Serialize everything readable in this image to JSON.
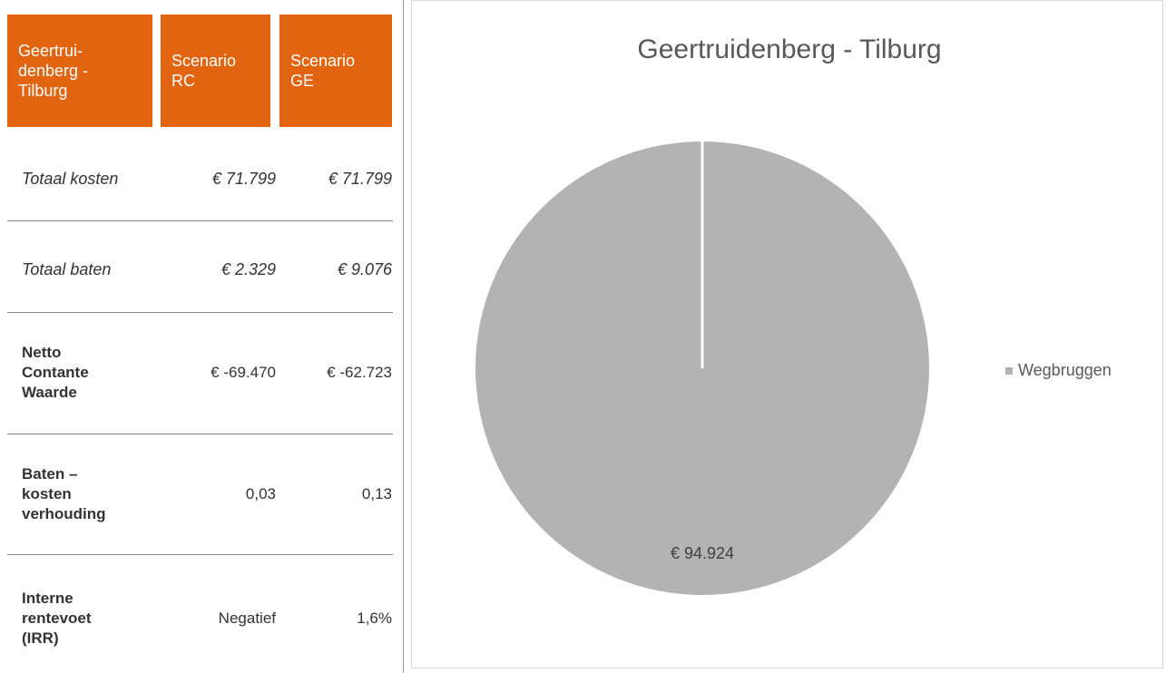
{
  "table": {
    "header": [
      "Geertrui-denberg - Tilburg",
      "Scenario RC",
      "Scenario GE"
    ],
    "rows": [
      [
        "Totaal kosten",
        "€ 71.799",
        "€ 71.799"
      ],
      [
        "Totaal baten",
        "€ 2.329",
        "€ 9.076"
      ],
      [
        "Netto Contante Waarde",
        "€ -69.470",
        "€ -62.723"
      ],
      [
        "Baten – kosten verhouding",
        "0,03",
        "0,13"
      ],
      [
        "Interne rentevoet (IRR)",
        "Negatief",
        "1,6%"
      ]
    ]
  },
  "chart_data": {
    "type": "pie",
    "title": "Geertruidenberg - Tilburg",
    "categories": [
      "Wegbruggen"
    ],
    "values": [
      94924
    ],
    "value_labels": [
      "€ 94.924"
    ],
    "colors": [
      "#b3b3b3"
    ],
    "legend": "right"
  }
}
